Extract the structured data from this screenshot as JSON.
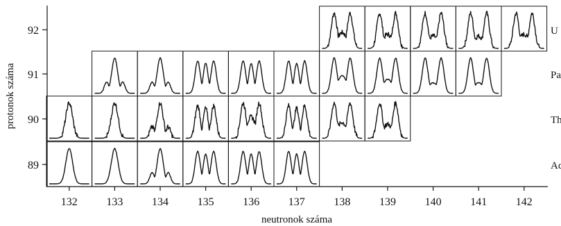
{
  "chart_data": {
    "type": "grid-of-distributions",
    "xlabel": "neutronok száma",
    "ylabel": "protonok száma",
    "x_ticks": [
      "132",
      "133",
      "134",
      "135",
      "136",
      "137",
      "138",
      "139",
      "140",
      "141",
      "142"
    ],
    "y_ticks": [
      "89",
      "90",
      "91",
      "92"
    ],
    "element_labels": [
      {
        "z": 92,
        "text": "U"
      },
      {
        "z": 91,
        "text": "Pa"
      },
      {
        "z": 90,
        "text": "Th"
      },
      {
        "z": 89,
        "text": "Ac"
      }
    ],
    "cells": [
      {
        "z": 92,
        "n": 138,
        "shape": "double-peak",
        "noise": "high",
        "valley": 0.45
      },
      {
        "z": 92,
        "n": 139,
        "shape": "double-peak",
        "noise": "high",
        "valley": 0.4
      },
      {
        "z": 92,
        "n": 140,
        "shape": "double-peak",
        "noise": "high",
        "valley": 0.35
      },
      {
        "z": 92,
        "n": 141,
        "shape": "double-peak",
        "noise": "high",
        "valley": 0.35
      },
      {
        "z": 92,
        "n": 142,
        "shape": "double-peak",
        "noise": "high",
        "valley": 0.4
      },
      {
        "z": 91,
        "n": 133,
        "shape": "single-peak-shoulders",
        "noise": "low"
      },
      {
        "z": 91,
        "n": 134,
        "shape": "single-peak-shoulders",
        "noise": "low"
      },
      {
        "z": 91,
        "n": 135,
        "shape": "triple-peak",
        "noise": "low"
      },
      {
        "z": 91,
        "n": 136,
        "shape": "triple-peak",
        "noise": "low"
      },
      {
        "z": 91,
        "n": 137,
        "shape": "triple-peak",
        "noise": "low"
      },
      {
        "z": 91,
        "n": 138,
        "shape": "double-peak",
        "noise": "low",
        "valley": 0.5
      },
      {
        "z": 91,
        "n": 139,
        "shape": "double-peak",
        "noise": "low",
        "valley": 0.4
      },
      {
        "z": 91,
        "n": 140,
        "shape": "double-peak",
        "noise": "low",
        "valley": 0.3
      },
      {
        "z": 91,
        "n": 141,
        "shape": "double-peak",
        "noise": "low",
        "valley": 0.3
      },
      {
        "z": 90,
        "n": 132,
        "shape": "single-peak",
        "noise": "high"
      },
      {
        "z": 90,
        "n": 133,
        "shape": "single-peak",
        "noise": "high"
      },
      {
        "z": 90,
        "n": 134,
        "shape": "single-peak-shoulders",
        "noise": "high"
      },
      {
        "z": 90,
        "n": 135,
        "shape": "triple-peak",
        "noise": "high"
      },
      {
        "z": 90,
        "n": 136,
        "shape": "double-peak",
        "noise": "high",
        "valley": 0.6
      },
      {
        "z": 90,
        "n": 137,
        "shape": "triple-peak",
        "noise": "high"
      },
      {
        "z": 90,
        "n": 138,
        "shape": "double-peak",
        "noise": "high",
        "valley": 0.45
      },
      {
        "z": 90,
        "n": 139,
        "shape": "double-peak",
        "noise": "high",
        "valley": 0.4
      },
      {
        "z": 89,
        "n": 132,
        "shape": "single-peak",
        "noise": "low"
      },
      {
        "z": 89,
        "n": 133,
        "shape": "single-peak",
        "noise": "low"
      },
      {
        "z": 89,
        "n": 134,
        "shape": "single-peak-shoulders",
        "noise": "low"
      },
      {
        "z": 89,
        "n": 135,
        "shape": "triple-peak",
        "noise": "low"
      },
      {
        "z": 89,
        "n": 136,
        "shape": "triple-peak",
        "noise": "low"
      },
      {
        "z": 89,
        "n": 137,
        "shape": "triple-peak",
        "noise": "low"
      }
    ]
  }
}
